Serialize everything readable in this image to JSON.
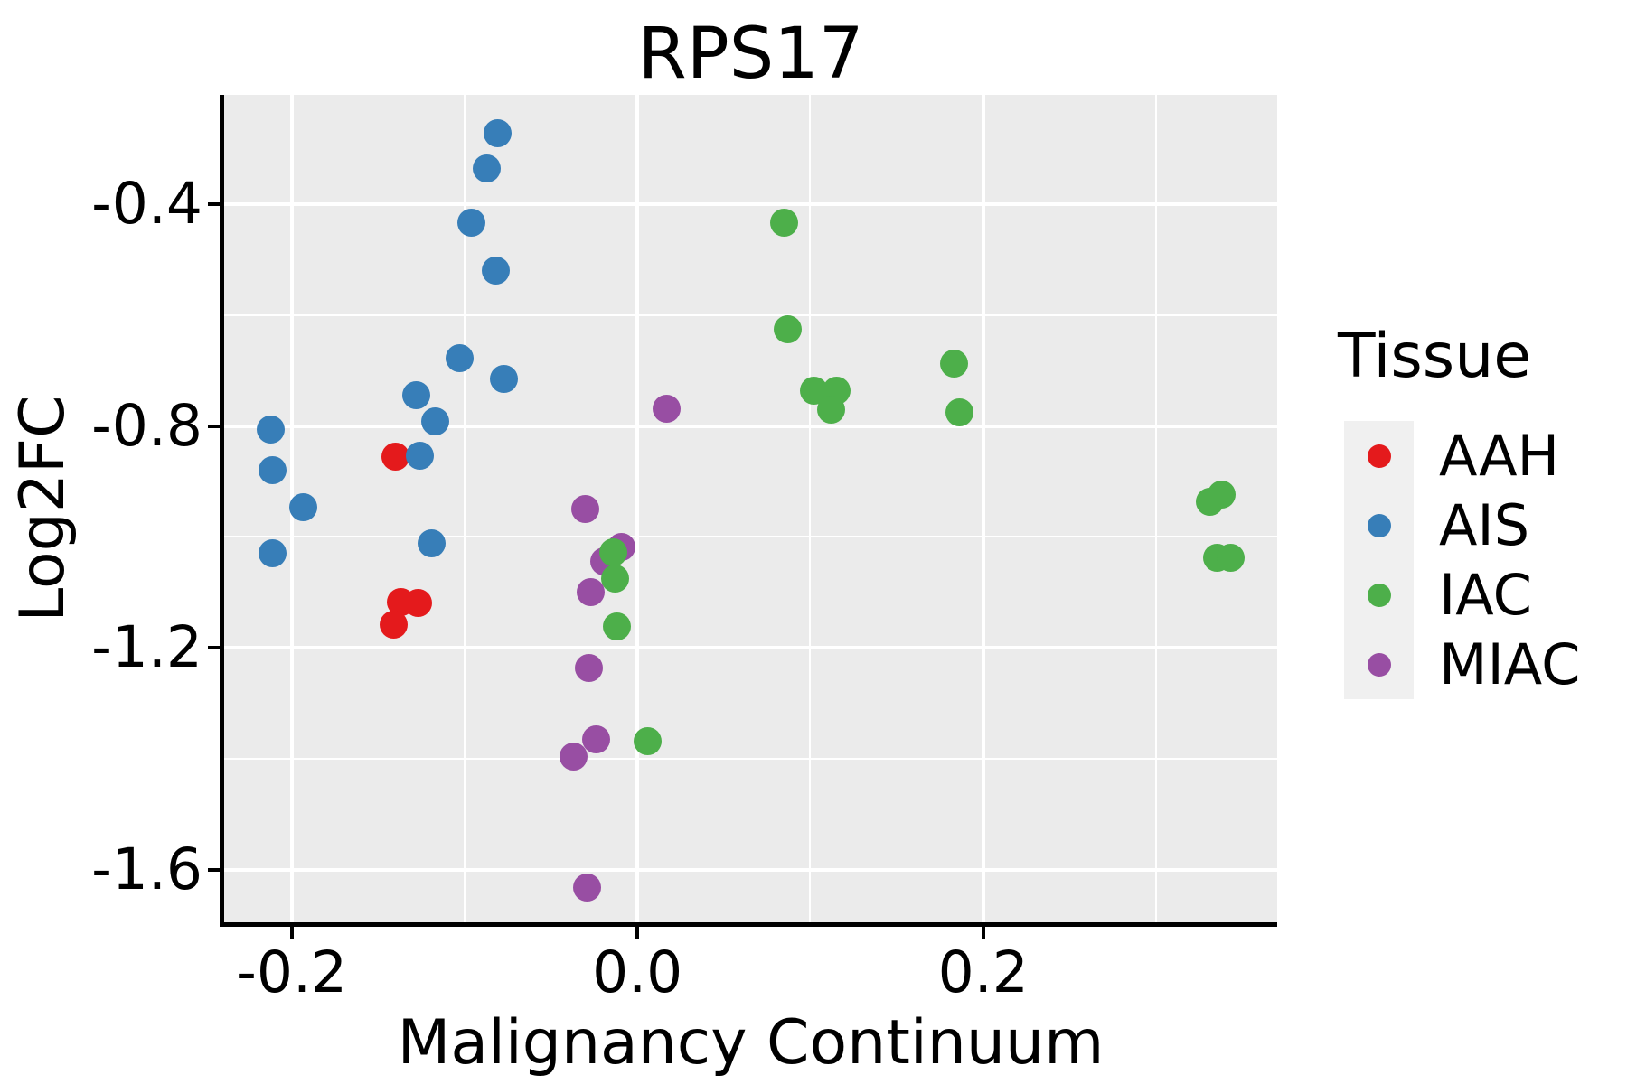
{
  "chart_data": {
    "type": "scatter",
    "title": "RPS17",
    "xlabel": "Malignancy Continuum",
    "ylabel": "Log2FC",
    "legend_title": "Tissue",
    "xlim": [
      -0.239,
      0.37
    ],
    "ylim": [
      -1.695,
      -0.203
    ],
    "grid": true,
    "legend_position": "right",
    "panel_color": "#EBEBEB",
    "x_ticks": {
      "values": [
        -0.2,
        0.0,
        0.2
      ],
      "labels": [
        "-0.2",
        "0.0",
        "0.2"
      ],
      "minor": [
        -0.1,
        0.1,
        0.3
      ]
    },
    "y_ticks": {
      "values": [
        -0.4,
        -0.8,
        -1.2,
        -1.6
      ],
      "labels": [
        "-0.4",
        "-0.8",
        "-1.2",
        "-1.6"
      ],
      "minor": [
        -0.6,
        -1.0,
        -1.4
      ]
    },
    "series": [
      {
        "name": "AAH",
        "color": "#E41A1C",
        "points": [
          [
            -0.14,
            -0.856
          ],
          [
            -0.137,
            -1.118
          ],
          [
            -0.127,
            -1.119
          ],
          [
            -0.141,
            -1.159
          ]
        ]
      },
      {
        "name": "AIS",
        "color": "#377EB8",
        "points": [
          [
            -0.081,
            -0.273
          ],
          [
            -0.087,
            -0.336
          ],
          [
            -0.096,
            -0.434
          ],
          [
            -0.082,
            -0.519
          ],
          [
            -0.103,
            -0.678
          ],
          [
            -0.077,
            -0.716
          ],
          [
            -0.128,
            -0.745
          ],
          [
            -0.117,
            -0.792
          ],
          [
            -0.212,
            -0.807
          ],
          [
            -0.126,
            -0.853
          ],
          [
            -0.211,
            -0.879
          ],
          [
            -0.193,
            -0.947
          ],
          [
            -0.119,
            -1.012
          ],
          [
            -0.211,
            -1.029
          ]
        ]
      },
      {
        "name": "IAC",
        "color": "#4DAF4A",
        "points": [
          [
            0.085,
            -0.434
          ],
          [
            0.087,
            -0.625
          ],
          [
            0.102,
            -0.736
          ],
          [
            0.115,
            -0.737
          ],
          [
            0.112,
            -0.77
          ],
          [
            0.183,
            -0.687
          ],
          [
            0.186,
            -0.775
          ],
          [
            -0.014,
            -1.028
          ],
          [
            -0.013,
            -1.076
          ],
          [
            -0.012,
            -1.161
          ],
          [
            0.006,
            -1.369
          ],
          [
            0.338,
            -0.924
          ],
          [
            0.331,
            -0.937
          ],
          [
            0.335,
            -1.037
          ],
          [
            0.343,
            -1.037
          ]
        ]
      },
      {
        "name": "MIAC",
        "color": "#984EA3",
        "points": [
          [
            0.017,
            -0.769
          ],
          [
            -0.03,
            -0.949
          ],
          [
            -0.009,
            -1.019
          ],
          [
            -0.019,
            -1.045
          ],
          [
            -0.027,
            -1.1
          ],
          [
            -0.028,
            -1.237
          ],
          [
            -0.024,
            -1.365
          ],
          [
            -0.037,
            -1.396
          ],
          [
            -0.029,
            -1.633
          ]
        ]
      }
    ],
    "draw_order": [
      "AAH",
      "MIAC",
      "AIS",
      "IAC"
    ]
  }
}
